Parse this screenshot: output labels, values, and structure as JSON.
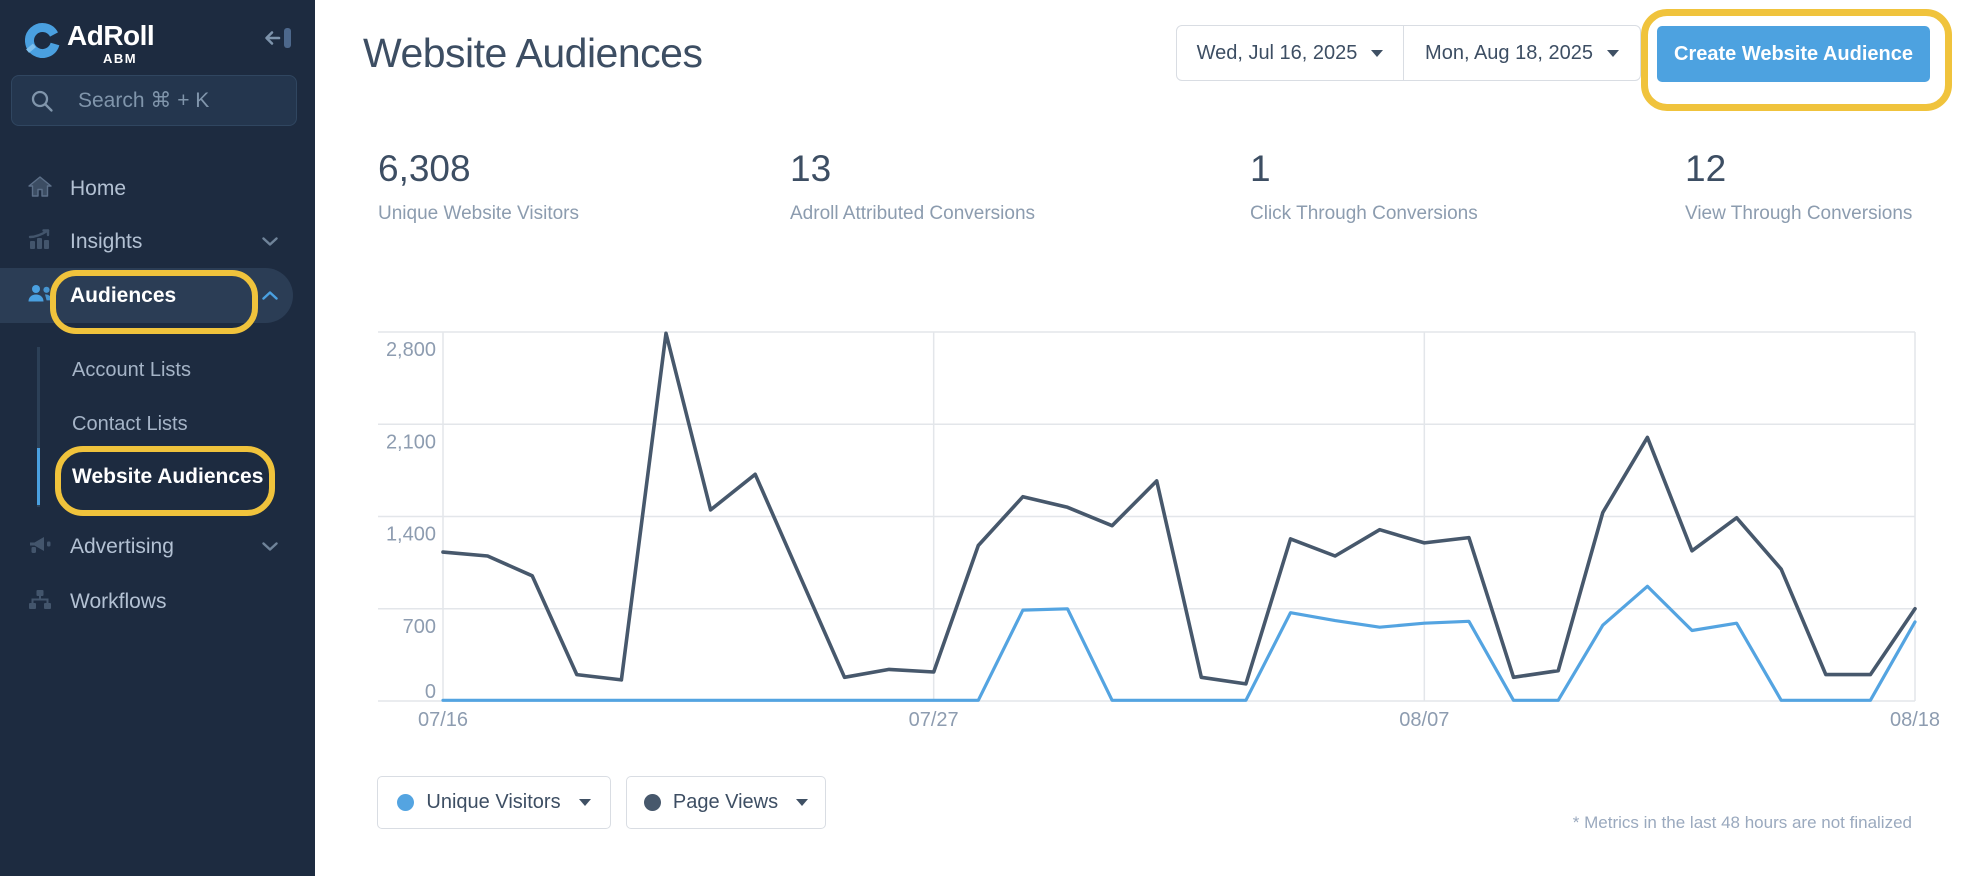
{
  "sidebar": {
    "brand": "AdRoll",
    "brand_sub": "ABM",
    "search_placeholder": "Search ⌘ + K",
    "items": [
      {
        "label": "Home"
      },
      {
        "label": "Insights"
      },
      {
        "label": "Audiences"
      },
      {
        "label": "Advertising"
      },
      {
        "label": "Workflows"
      }
    ],
    "audiences_children": [
      {
        "label": "Account Lists"
      },
      {
        "label": "Contact Lists"
      },
      {
        "label": "Website Audiences"
      }
    ]
  },
  "header": {
    "title": "Website Audiences",
    "date_start": "Wed, Jul 16, 2025",
    "date_end": "Mon, Aug 18, 2025",
    "create_button": "Create Website Audience"
  },
  "stats": [
    {
      "value": "6,308",
      "label": "Unique Website Visitors"
    },
    {
      "value": "13",
      "label": "Adroll Attributed Conversions"
    },
    {
      "value": "1",
      "label": "Click Through Conversions"
    },
    {
      "value": "12",
      "label": "View Through Conversions"
    }
  ],
  "chart_data": {
    "type": "line",
    "dates": [
      "07/16",
      "07/17",
      "07/18",
      "07/19",
      "07/20",
      "07/21",
      "07/22",
      "07/23",
      "07/24",
      "07/25",
      "07/26",
      "07/27",
      "07/28",
      "07/29",
      "07/30",
      "07/31",
      "08/01",
      "08/02",
      "08/03",
      "08/04",
      "08/05",
      "08/06",
      "08/07",
      "08/08",
      "08/09",
      "08/10",
      "08/11",
      "08/12",
      "08/13",
      "08/14",
      "08/15",
      "08/16",
      "08/17",
      "08/18"
    ],
    "series": [
      {
        "name": "Page Views",
        "color": "#47586c",
        "values": [
          1130,
          1100,
          950,
          200,
          160,
          2790,
          1450,
          1720,
          950,
          180,
          240,
          220,
          1180,
          1550,
          1470,
          1330,
          1670,
          180,
          130,
          1230,
          1100,
          1300,
          1200,
          1240,
          180,
          230,
          1430,
          2000,
          1140,
          1390,
          1000,
          200,
          200,
          700
        ]
      },
      {
        "name": "Unique Visitors",
        "color": "#54a4e1",
        "values": [
          5,
          5,
          5,
          5,
          5,
          5,
          5,
          5,
          5,
          5,
          5,
          5,
          5,
          690,
          700,
          5,
          5,
          5,
          5,
          670,
          610,
          560,
          590,
          605,
          5,
          5,
          575,
          870,
          535,
          590,
          5,
          5,
          5,
          600
        ]
      }
    ],
    "ylim": [
      0,
      2800
    ],
    "yticks": [
      {
        "v": 0,
        "label": "0"
      },
      {
        "v": 700,
        "label": "700"
      },
      {
        "v": 1400,
        "label": "1,400"
      },
      {
        "v": 2100,
        "label": "2,100"
      },
      {
        "v": 2800,
        "label": "2,800"
      }
    ],
    "xticks": [
      {
        "i": 0,
        "label": "07/16"
      },
      {
        "i": 11,
        "label": "07/27"
      },
      {
        "i": 22,
        "label": "08/07"
      },
      {
        "i": 33,
        "label": "08/18"
      }
    ],
    "grid": true,
    "legend_position": "bottom"
  },
  "legend": [
    {
      "label": "Unique Visitors",
      "color": "#54a4e1"
    },
    {
      "label": "Page Views",
      "color": "#47586c"
    }
  ],
  "footnote": "* Metrics in the last 48 hours are not finalized",
  "colors": {
    "sidebar_bg": "#1d2b40",
    "sidebar_active_bg": "#2b3d55",
    "accent_blue": "#4aa0e0",
    "button_blue": "#4da2e0",
    "annotation_gold": "#f0c33c",
    "text_dark": "#3d4e63",
    "text_muted": "#8c9caf",
    "gridline": "#e3e6ea",
    "border": "#d9dde3"
  }
}
